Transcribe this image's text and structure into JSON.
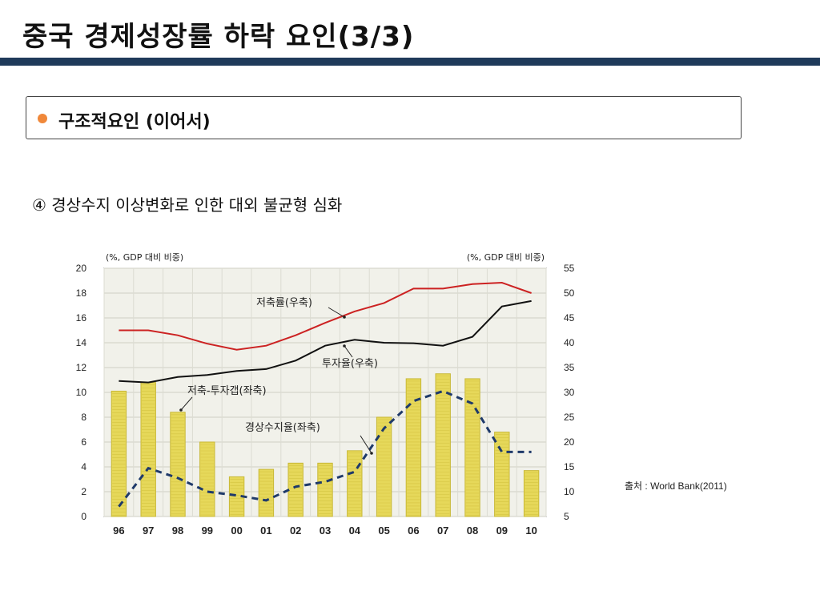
{
  "page": {
    "title": "중국 경제성장률 하락 요인(3/3)",
    "section_label": "구조적요인 (이어서)",
    "point": "④ 경상수지 이상변화로 인한 대외 불균형 심화",
    "source": "출처 : World Bank(2011)"
  },
  "colors": {
    "title_bar": "#1f3a5a",
    "bullet": "#f0883a",
    "savings_line": "#cc2222",
    "investment_line": "#111111",
    "current_account_line": "#1f3a6a",
    "gap_bar": "#e6d85a"
  },
  "chart_data": {
    "type": "bar",
    "categories": [
      "96",
      "97",
      "98",
      "99",
      "00",
      "01",
      "02",
      "03",
      "04",
      "05",
      "06",
      "07",
      "08",
      "09",
      "10"
    ],
    "left_axis": {
      "label": "(%, GDP 대비 비중)",
      "ylim": [
        0,
        20
      ],
      "ticks": [
        0,
        2,
        4,
        6,
        8,
        10,
        12,
        14,
        16,
        18,
        20
      ]
    },
    "right_axis": {
      "label": "(%, GDP 대비 비중)",
      "ylim": [
        5,
        55
      ],
      "ticks": [
        5,
        10,
        15,
        20,
        25,
        30,
        35,
        40,
        45,
        50,
        55
      ]
    },
    "series": [
      {
        "name": "저축투자갭(좌축)",
        "kind": "bar",
        "axis": "left",
        "values": [
          10.1,
          10.8,
          8.4,
          6.0,
          3.2,
          3.8,
          4.3,
          4.3,
          5.3,
          8.0,
          11.1,
          11.5,
          11.1,
          6.8,
          3.7
        ]
      },
      {
        "name": "경상수지율(좌축)",
        "kind": "dashed-line",
        "axis": "left",
        "values": [
          0.8,
          3.9,
          3.1,
          2.0,
          1.7,
          1.3,
          2.4,
          2.8,
          3.6,
          7.1,
          9.3,
          10.1,
          9.1,
          5.2,
          5.2
        ]
      },
      {
        "name": "저축률(우축)",
        "kind": "line",
        "axis": "right",
        "values": [
          42.5,
          42.5,
          41.5,
          39.8,
          38.6,
          39.4,
          41.5,
          44.0,
          46.3,
          48.0,
          50.9,
          50.9,
          51.8,
          52.1,
          50.0
        ]
      },
      {
        "name": "투자율(우축)",
        "kind": "line",
        "axis": "right",
        "values": [
          32.3,
          32.0,
          33.1,
          33.5,
          34.3,
          34.7,
          36.4,
          39.4,
          40.6,
          40.0,
          39.9,
          39.4,
          41.2,
          47.3,
          48.4
        ]
      }
    ],
    "annotations": [
      "저축률(우축)",
      "투자율(우축)",
      "저축-투자갭(좌축)",
      "경상수지율(좌축)"
    ],
    "grid": true
  }
}
